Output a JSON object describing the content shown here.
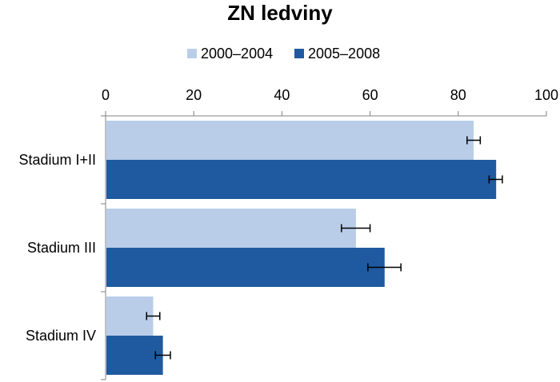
{
  "chart_data": {
    "type": "bar",
    "orientation": "horizontal",
    "title": "ZN ledviny",
    "xlabel": "",
    "ylabel": "",
    "categories": [
      "Stadium I+II",
      "Stadium III",
      "Stadium IV"
    ],
    "series": [
      {
        "name": "2000–2004",
        "color": "#b9cde8",
        "values": [
          83.5,
          56.8,
          10.8
        ],
        "error_low": [
          82.0,
          53.5,
          9.3
        ],
        "error_high": [
          85.0,
          60.0,
          12.3
        ]
      },
      {
        "name": "2005–2008",
        "color": "#1f5aa0",
        "values": [
          88.6,
          63.3,
          13.0
        ],
        "error_low": [
          87.0,
          59.5,
          11.3
        ],
        "error_high": [
          90.0,
          67.0,
          14.7
        ]
      }
    ],
    "xlim": [
      0,
      100
    ],
    "xticks": [
      "0",
      "20",
      "40",
      "60",
      "80",
      "100"
    ],
    "axis_position": "top",
    "legend": "top",
    "grid": false
  }
}
